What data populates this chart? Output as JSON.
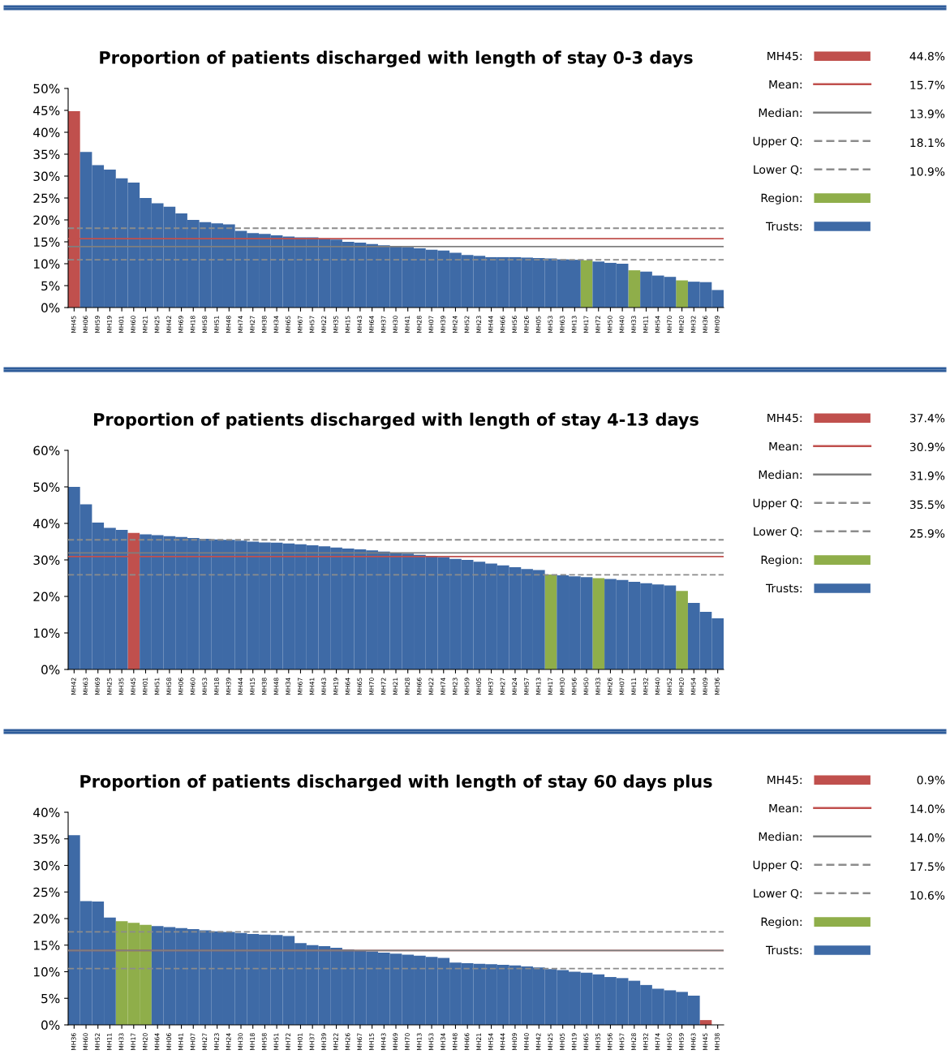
{
  "chart_data": [
    {
      "type": "bar",
      "title": "Proportion of patients discharged with length of stay 0-3 days",
      "legend": "right",
      "categories": [
        "MH45",
        "MH06",
        "MH59",
        "MH19",
        "MH01",
        "MH60",
        "MH21",
        "MH25",
        "MH42",
        "MH69",
        "MH18",
        "MH58",
        "MH51",
        "MH48",
        "MH74",
        "MH27",
        "MH38",
        "MH34",
        "MH65",
        "MH67",
        "MH57",
        "MH22",
        "MH35",
        "MH15",
        "MH43",
        "MH64",
        "MH37",
        "MH30",
        "MH41",
        "MH28",
        "MH07",
        "MH39",
        "MH24",
        "MH52",
        "MH23",
        "MH44",
        "MH66",
        "MH56",
        "MH26",
        "MH05",
        "MH53",
        "MH63",
        "MH13",
        "MH17",
        "MH72",
        "MH50",
        "MH40",
        "MH33",
        "MH11",
        "MH54",
        "MH70",
        "MH20",
        "MH32",
        "MH36",
        "MH09"
      ],
      "series": [
        {
          "name": "MH45:",
          "color": "#c0504d",
          "values": [
            44.8,
            null,
            null,
            null,
            null,
            null,
            null,
            null,
            null,
            null,
            null,
            null,
            null,
            null,
            null,
            null,
            null,
            null,
            null,
            null,
            null,
            null,
            null,
            null,
            null,
            null,
            null,
            null,
            null,
            null,
            null,
            null,
            null,
            null,
            null,
            null,
            null,
            null,
            null,
            null,
            null,
            null,
            null,
            null,
            null,
            null,
            null,
            null,
            null,
            null,
            null,
            null,
            null,
            null,
            null
          ]
        },
        {
          "name": "Region:",
          "color": "#8fae4a",
          "values": [
            null,
            null,
            null,
            null,
            null,
            null,
            null,
            null,
            null,
            null,
            null,
            null,
            null,
            null,
            null,
            null,
            null,
            null,
            null,
            null,
            null,
            null,
            null,
            null,
            null,
            null,
            null,
            null,
            null,
            null,
            null,
            null,
            null,
            null,
            null,
            null,
            null,
            null,
            null,
            null,
            null,
            null,
            null,
            10.8,
            null,
            null,
            null,
            8.5,
            null,
            null,
            null,
            6.2,
            null,
            null,
            null
          ]
        },
        {
          "name": "Trusts:",
          "color": "#3e6aa6",
          "values": [
            null,
            35.5,
            32.5,
            31.5,
            29.5,
            28.5,
            25,
            23.8,
            23,
            21.5,
            20,
            19.5,
            19.2,
            19,
            17.5,
            17,
            16.8,
            16.5,
            16.2,
            16,
            16,
            15.8,
            15.5,
            15,
            14.8,
            14.5,
            14.2,
            14,
            13.8,
            13.5,
            13.2,
            13,
            12.5,
            12,
            11.8,
            11.5,
            11.5,
            11.5,
            11.4,
            11.3,
            11.2,
            11.0,
            10.9,
            null,
            10.5,
            10.2,
            10.0,
            null,
            8.2,
            7.3,
            7.0,
            null,
            5.9,
            5.8,
            4.0
          ]
        }
      ],
      "ylim": [
        0,
        50
      ],
      "yticks": [
        {
          "value": 0,
          "label": "0%"
        },
        {
          "value": 5,
          "label": "5%"
        },
        {
          "value": 10,
          "label": "10%"
        },
        {
          "value": 15,
          "label": "15%"
        },
        {
          "value": 20,
          "label": "20%"
        },
        {
          "value": 25,
          "label": "25%"
        },
        {
          "value": 30,
          "label": "30%"
        },
        {
          "value": 35,
          "label": "35%"
        },
        {
          "value": 40,
          "label": "40%"
        },
        {
          "value": 45,
          "label": "45%"
        },
        {
          "value": 50,
          "label": "50%"
        }
      ],
      "ref_lines": [
        {
          "axis": "y",
          "value": 15.7,
          "label": "Mean:",
          "color": "#c0504d",
          "line_style": "solid"
        },
        {
          "axis": "y",
          "value": 13.9,
          "label": "Median:",
          "color": "#7f7f7f",
          "line_style": "solid"
        },
        {
          "axis": "y",
          "value": 18.1,
          "label": "Upper Q:",
          "color": "#8c8c8c",
          "line_style": "dashed"
        },
        {
          "axis": "y",
          "value": 10.9,
          "label": "Lower Q:",
          "color": "#8c8c8c",
          "line_style": "dashed"
        }
      ],
      "annotations": [
        "44.8%",
        "15.7%",
        "13.9%",
        "18.1%",
        "10.9%"
      ]
    },
    {
      "type": "bar",
      "title": "Proportion of patients discharged with length of stay 4-13 days",
      "legend": "right",
      "categories": [
        "MH42",
        "MH63",
        "MH69",
        "MH25",
        "MH35",
        "MH45",
        "MH01",
        "MH51",
        "MH58",
        "MH06",
        "MH60",
        "MH53",
        "MH18",
        "MH39",
        "MH44",
        "MH15",
        "MH38",
        "MH48",
        "MH34",
        "MH67",
        "MH41",
        "MH43",
        "MH19",
        "MH64",
        "MH65",
        "MH70",
        "MH72",
        "MH21",
        "MH28",
        "MH66",
        "MH22",
        "MH74",
        "MH23",
        "MH59",
        "MH05",
        "MH37",
        "MH27",
        "MH24",
        "MH57",
        "MH13",
        "MH17",
        "MH30",
        "MH56",
        "MH50",
        "MH33",
        "MH26",
        "MH07",
        "MH11",
        "MH32",
        "MH40",
        "MH52",
        "MH20",
        "MH54",
        "MH09",
        "MH36"
      ],
      "series": [
        {
          "name": "MH45:",
          "color": "#c0504d",
          "values": [
            null,
            null,
            null,
            null,
            null,
            37.4,
            null,
            null,
            null,
            null,
            null,
            null,
            null,
            null,
            null,
            null,
            null,
            null,
            null,
            null,
            null,
            null,
            null,
            null,
            null,
            null,
            null,
            null,
            null,
            null,
            null,
            null,
            null,
            null,
            null,
            null,
            null,
            null,
            null,
            null,
            null,
            null,
            null,
            null,
            null,
            null,
            null,
            null,
            null,
            null,
            null,
            null,
            null,
            null,
            null
          ]
        },
        {
          "name": "Region:",
          "color": "#8fae4a",
          "values": [
            null,
            null,
            null,
            null,
            null,
            null,
            null,
            null,
            null,
            null,
            null,
            null,
            null,
            null,
            null,
            null,
            null,
            null,
            null,
            null,
            null,
            null,
            null,
            null,
            null,
            null,
            null,
            null,
            null,
            null,
            null,
            null,
            null,
            null,
            null,
            null,
            null,
            null,
            null,
            null,
            26.0,
            null,
            null,
            null,
            25.0,
            null,
            null,
            null,
            null,
            null,
            null,
            21.5,
            null,
            null,
            null
          ]
        },
        {
          "name": "Trusts:",
          "color": "#3e6aa6",
          "values": [
            50.0,
            45.2,
            40.2,
            38.8,
            38.2,
            null,
            37.0,
            36.8,
            36.5,
            36.3,
            36.0,
            35.8,
            35.6,
            35.5,
            35.3,
            35.0,
            34.8,
            34.7,
            34.5,
            34.3,
            34.0,
            33.7,
            33.4,
            33.1,
            32.9,
            32.6,
            32.3,
            32.0,
            31.7,
            31.4,
            31.0,
            30.7,
            30.3,
            30.0,
            29.5,
            29.0,
            28.5,
            28.0,
            27.5,
            27.2,
            null,
            25.8,
            25.5,
            25.3,
            null,
            24.8,
            24.5,
            24.0,
            23.6,
            23.3,
            23.0,
            null,
            18.2,
            15.8,
            14.0
          ]
        }
      ],
      "ylim": [
        0,
        60
      ],
      "yticks": [
        {
          "value": 0,
          "label": "0%"
        },
        {
          "value": 10,
          "label": "10%"
        },
        {
          "value": 20,
          "label": "20%"
        },
        {
          "value": 30,
          "label": "30%"
        },
        {
          "value": 40,
          "label": "40%"
        },
        {
          "value": 50,
          "label": "50%"
        },
        {
          "value": 60,
          "label": "60%"
        }
      ],
      "ref_lines": [
        {
          "axis": "y",
          "value": 30.9,
          "label": "Mean:",
          "color": "#c0504d",
          "line_style": "solid"
        },
        {
          "axis": "y",
          "value": 31.9,
          "label": "Median:",
          "color": "#7f7f7f",
          "line_style": "solid"
        },
        {
          "axis": "y",
          "value": 35.5,
          "label": "Upper Q:",
          "color": "#8c8c8c",
          "line_style": "dashed"
        },
        {
          "axis": "y",
          "value": 25.9,
          "label": "Lower Q:",
          "color": "#8c8c8c",
          "line_style": "dashed"
        }
      ],
      "annotations": [
        "37.4%",
        "30.9%",
        "31.9%",
        "35.5%",
        "25.9%"
      ]
    },
    {
      "type": "bar",
      "title": "Proportion of patients discharged with length of stay 60 days plus",
      "legend": "right",
      "categories": [
        "MH36",
        "MH60",
        "MH52",
        "MH11",
        "MH33",
        "MH17",
        "MH20",
        "MH64",
        "MH06",
        "MH41",
        "MH07",
        "MH27",
        "MH23",
        "MH24",
        "MH30",
        "MH18",
        "MH58",
        "MH51",
        "MH72",
        "MH01",
        "MH37",
        "MH39",
        "MH22",
        "MH26",
        "MH67",
        "MH15",
        "MH43",
        "MH69",
        "MH70",
        "MH13",
        "MH53",
        "MH34",
        "MH48",
        "MH66",
        "MH21",
        "MH54",
        "MH44",
        "MH09",
        "MH40",
        "MH42",
        "MH25",
        "MH05",
        "MH19",
        "MH65",
        "MH35",
        "MH56",
        "MH57",
        "MH28",
        "MH32",
        "MH74",
        "MH50",
        "MH59",
        "MH63",
        "MH45",
        "MH38"
      ],
      "series": [
        {
          "name": "MH45:",
          "color": "#c0504d",
          "values": [
            null,
            null,
            null,
            null,
            null,
            null,
            null,
            null,
            null,
            null,
            null,
            null,
            null,
            null,
            null,
            null,
            null,
            null,
            null,
            null,
            null,
            null,
            null,
            null,
            null,
            null,
            null,
            null,
            null,
            null,
            null,
            null,
            null,
            null,
            null,
            null,
            null,
            null,
            null,
            null,
            null,
            null,
            null,
            null,
            null,
            null,
            null,
            null,
            null,
            null,
            null,
            null,
            null,
            0.9,
            null
          ]
        },
        {
          "name": "Region:",
          "color": "#8fae4a",
          "values": [
            null,
            null,
            null,
            null,
            19.5,
            19.2,
            18.8,
            null,
            null,
            null,
            null,
            null,
            null,
            null,
            null,
            null,
            null,
            null,
            null,
            null,
            null,
            null,
            null,
            null,
            null,
            null,
            null,
            null,
            null,
            null,
            null,
            null,
            null,
            null,
            null,
            null,
            null,
            null,
            null,
            null,
            null,
            null,
            null,
            null,
            null,
            null,
            null,
            null,
            null,
            null,
            null,
            null,
            null,
            null,
            null
          ]
        },
        {
          "name": "Trusts:",
          "color": "#3e6aa6",
          "values": [
            35.7,
            23.3,
            23.2,
            20.2,
            null,
            null,
            null,
            18.6,
            18.4,
            18.2,
            18.0,
            17.8,
            17.6,
            17.5,
            17.3,
            17.1,
            17.0,
            16.9,
            16.7,
            15.4,
            15.0,
            14.8,
            14.5,
            14.2,
            14.0,
            13.8,
            13.6,
            13.4,
            13.2,
            13.0,
            12.8,
            12.6,
            11.7,
            11.6,
            11.5,
            11.4,
            11.3,
            11.2,
            11.0,
            10.8,
            10.5,
            10.3,
            10.0,
            9.8,
            9.5,
            9.0,
            8.8,
            8.3,
            7.5,
            6.8,
            6.5,
            6.2,
            5.5,
            null,
            0
          ]
        }
      ],
      "ylim": [
        0,
        40
      ],
      "yticks": [
        {
          "value": 0,
          "label": "0%"
        },
        {
          "value": 5,
          "label": "5%"
        },
        {
          "value": 10,
          "label": "10%"
        },
        {
          "value": 15,
          "label": "15%"
        },
        {
          "value": 20,
          "label": "20%"
        },
        {
          "value": 25,
          "label": "25%"
        },
        {
          "value": 30,
          "label": "30%"
        },
        {
          "value": 35,
          "label": "35%"
        },
        {
          "value": 40,
          "label": "40%"
        }
      ],
      "ref_lines": [
        {
          "axis": "y",
          "value": 14.0,
          "label": "Mean:",
          "color": "#c0504d",
          "line_style": "solid"
        },
        {
          "axis": "y",
          "value": 14.0,
          "label": "Median:",
          "color": "#7f7f7f",
          "line_style": "solid"
        },
        {
          "axis": "y",
          "value": 17.5,
          "label": "Upper Q:",
          "color": "#8c8c8c",
          "line_style": "dashed"
        },
        {
          "axis": "y",
          "value": 10.6,
          "label": "Lower Q:",
          "color": "#8c8c8c",
          "line_style": "dashed"
        }
      ],
      "annotations": [
        "0.9%",
        "14.0%",
        "14.0%",
        "17.5%",
        "10.6%"
      ]
    }
  ]
}
